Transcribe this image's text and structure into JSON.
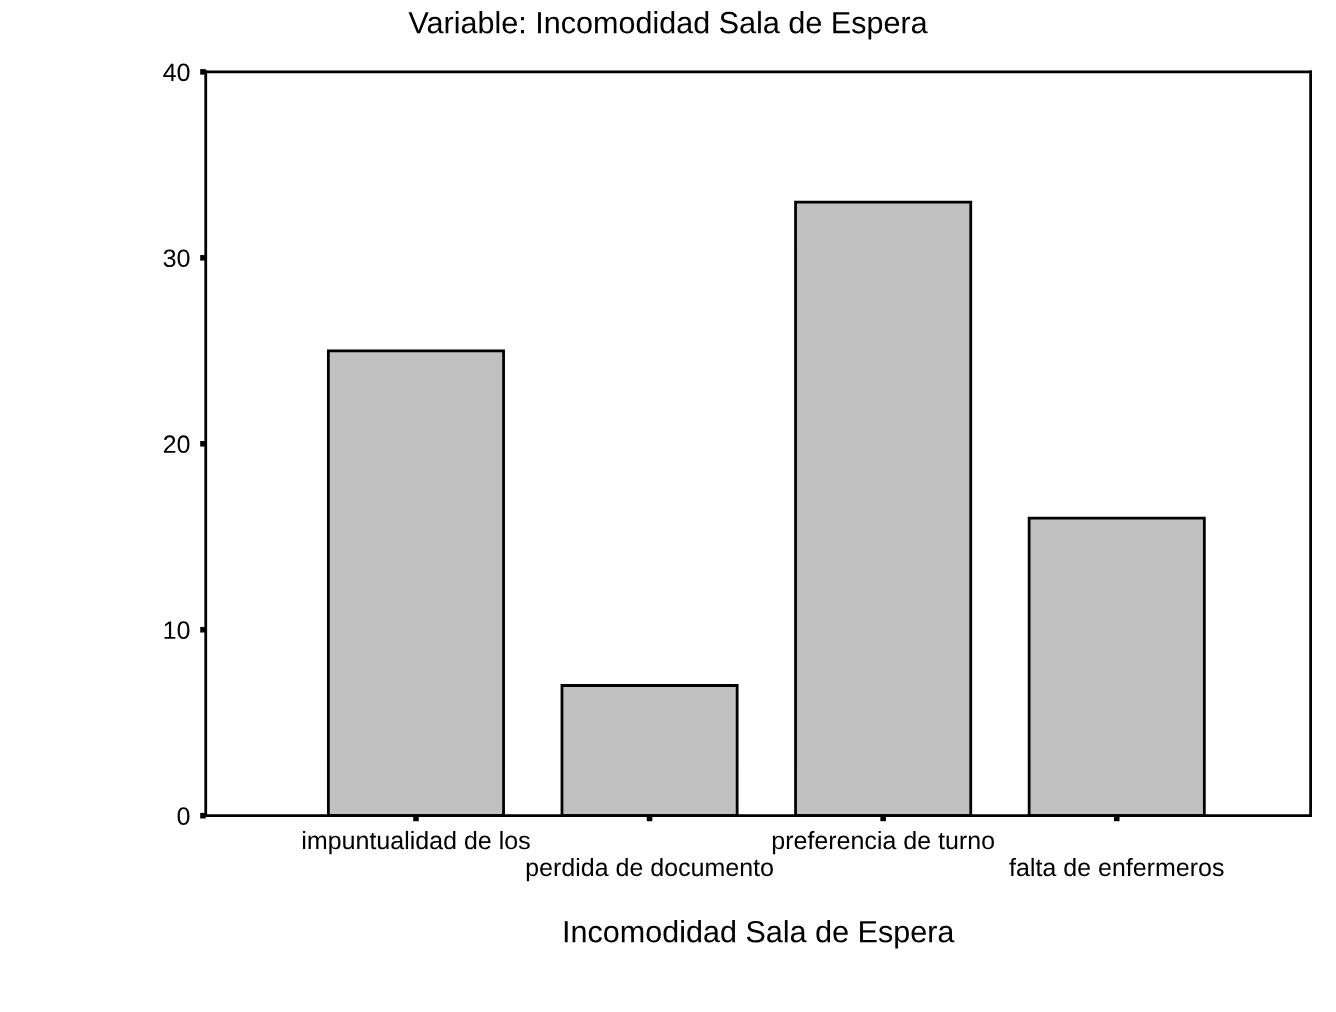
{
  "chart_data": {
    "type": "bar",
    "title": "Variable: Incomodidad Sala de Espera",
    "xlabel": "Incomodidad Sala de Espera",
    "categories": [
      "impuntualidad de los",
      "perdida de documento",
      "preferencia de turno",
      "falta de enfermeros"
    ],
    "values": [
      25,
      7,
      33,
      16
    ],
    "color": "#c0c0c0",
    "ylim": [
      0,
      40
    ],
    "yticks": [
      0,
      10,
      20,
      30,
      40
    ],
    "grid": false
  }
}
